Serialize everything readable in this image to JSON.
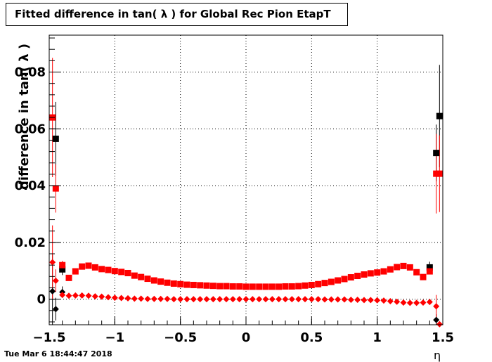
{
  "chart_data": {
    "type": "scatter",
    "title": "Fitted difference in tan( λ ) for Global Rec Pion EtapT",
    "xlabel": "η",
    "ylabel": "difference in tan( λ )",
    "xlim": [
      -1.5,
      1.5
    ],
    "ylim": [
      -0.009,
      0.093
    ],
    "grid": true,
    "xticks": [
      "−1.5",
      "−1",
      "−0.5",
      "0",
      "0.5",
      "1",
      "1.5"
    ],
    "xtick_values": [
      -1.5,
      -1,
      -0.5,
      0,
      0.5,
      1,
      1.5
    ],
    "yticks": [
      "0",
      "0.02",
      "0.04",
      "0.06",
      "0.08"
    ],
    "ytick_values": [
      0,
      0.02,
      0.04,
      0.06,
      0.08
    ],
    "series": [
      {
        "marker": "square",
        "color": "#000000",
        "points": [
          [
            -1.45,
            0.0565,
            0.013
          ],
          [
            -1.4,
            0.0105,
            0.002
          ],
          [
            1.4,
            0.0112,
            0.002
          ],
          [
            1.45,
            0.0515,
            0.01
          ],
          [
            1.475,
            0.0645,
            0.018
          ]
        ]
      },
      {
        "marker": "square",
        "color": "#ff0000",
        "points": [
          [
            -1.475,
            0.064,
            0.021
          ],
          [
            -1.45,
            0.039,
            0.0085
          ],
          [
            -1.4,
            0.012,
            0.0015
          ],
          [
            -1.35,
            0.0075,
            0
          ],
          [
            -1.3,
            0.0098,
            0
          ],
          [
            -1.25,
            0.0115,
            0
          ],
          [
            -1.2,
            0.0118,
            0
          ],
          [
            -1.15,
            0.0112,
            0
          ],
          [
            -1.1,
            0.0106,
            0
          ],
          [
            -1.05,
            0.0103,
            0
          ],
          [
            -1.0,
            0.0099,
            0
          ],
          [
            -0.95,
            0.0096,
            0
          ],
          [
            -0.9,
            0.0092,
            0
          ],
          [
            -0.85,
            0.0083,
            0
          ],
          [
            -0.8,
            0.0078,
            0
          ],
          [
            -0.75,
            0.0072,
            0
          ],
          [
            -0.7,
            0.0066,
            0
          ],
          [
            -0.65,
            0.0062,
            0
          ],
          [
            -0.6,
            0.0058,
            0
          ],
          [
            -0.55,
            0.0055,
            0
          ],
          [
            -0.5,
            0.0053,
            0
          ],
          [
            -0.45,
            0.0051,
            0
          ],
          [
            -0.4,
            0.005,
            0
          ],
          [
            -0.35,
            0.0049,
            0
          ],
          [
            -0.3,
            0.0048,
            0
          ],
          [
            -0.25,
            0.0047,
            0
          ],
          [
            -0.2,
            0.0046,
            0
          ],
          [
            -0.15,
            0.0046,
            0
          ],
          [
            -0.1,
            0.0045,
            0
          ],
          [
            -0.05,
            0.0045,
            0
          ],
          [
            0.0,
            0.0044,
            0
          ],
          [
            0.05,
            0.0044,
            0
          ],
          [
            0.1,
            0.0044,
            0
          ],
          [
            0.15,
            0.0044,
            0
          ],
          [
            0.2,
            0.0044,
            0
          ],
          [
            0.25,
            0.0044,
            0
          ],
          [
            0.3,
            0.0045,
            0
          ],
          [
            0.35,
            0.0045,
            0
          ],
          [
            0.4,
            0.0046,
            0
          ],
          [
            0.45,
            0.0048,
            0
          ],
          [
            0.5,
            0.005,
            0
          ],
          [
            0.55,
            0.0053,
            0
          ],
          [
            0.6,
            0.0057,
            0
          ],
          [
            0.65,
            0.0061,
            0
          ],
          [
            0.7,
            0.0066,
            0
          ],
          [
            0.75,
            0.0071,
            0
          ],
          [
            0.8,
            0.0077,
            0
          ],
          [
            0.85,
            0.0082,
            0
          ],
          [
            0.9,
            0.0087,
            0
          ],
          [
            0.95,
            0.0091,
            0
          ],
          [
            1.0,
            0.0094,
            0
          ],
          [
            1.05,
            0.0098,
            0
          ],
          [
            1.1,
            0.0105,
            0
          ],
          [
            1.15,
            0.0113,
            0
          ],
          [
            1.2,
            0.0117,
            0
          ],
          [
            1.25,
            0.0112,
            0
          ],
          [
            1.3,
            0.0095,
            0
          ],
          [
            1.35,
            0.0078,
            0
          ],
          [
            1.4,
            0.0098,
            0
          ],
          [
            1.45,
            0.0442,
            0.014
          ],
          [
            1.475,
            0.0442,
            0.0135
          ]
        ]
      },
      {
        "marker": "diamond",
        "color": "#000000",
        "points": [
          [
            -1.475,
            0.0028,
            0.013
          ],
          [
            -1.45,
            -0.0035,
            0.004
          ],
          [
            -1.4,
            0.0025,
            0.002
          ],
          [
            1.45,
            -0.0073,
            0.002
          ]
        ]
      },
      {
        "marker": "diamond",
        "color": "#ff0000",
        "points": [
          [
            -1.475,
            0.013,
            0.013
          ],
          [
            -1.45,
            0.0065,
            0.004
          ],
          [
            -1.4,
            0.0015,
            0.0008
          ],
          [
            -1.35,
            0.0012,
            0
          ],
          [
            -1.3,
            0.0013,
            0
          ],
          [
            -1.25,
            0.0013,
            0
          ],
          [
            -1.2,
            0.0012,
            0
          ],
          [
            -1.15,
            0.001,
            0
          ],
          [
            -1.1,
            0.0009,
            0
          ],
          [
            -1.05,
            0.0007,
            0
          ],
          [
            -1.0,
            0.0005,
            0
          ],
          [
            -0.95,
            0.0004,
            0
          ],
          [
            -0.9,
            0.0003,
            0
          ],
          [
            -0.85,
            0.0002,
            0
          ],
          [
            -0.8,
            0.0002,
            0
          ],
          [
            -0.75,
            0.0001,
            0
          ],
          [
            -0.7,
            0.0001,
            0
          ],
          [
            -0.65,
            0.0001,
            0
          ],
          [
            -0.6,
            0.0001,
            0
          ],
          [
            -0.55,
            0.0,
            0
          ],
          [
            -0.5,
            0.0,
            0
          ],
          [
            -0.45,
            0.0,
            0
          ],
          [
            -0.4,
            0.0,
            0
          ],
          [
            -0.35,
            0.0,
            0
          ],
          [
            -0.3,
            0.0,
            0
          ],
          [
            -0.25,
            0.0,
            0
          ],
          [
            -0.2,
            0.0,
            0
          ],
          [
            -0.15,
            0.0,
            0
          ],
          [
            -0.1,
            0.0,
            0
          ],
          [
            -0.05,
            0.0,
            0
          ],
          [
            0.0,
            0.0,
            0
          ],
          [
            0.05,
            0.0,
            0
          ],
          [
            0.1,
            0.0,
            0
          ],
          [
            0.15,
            0.0,
            0
          ],
          [
            0.2,
            0.0,
            0
          ],
          [
            0.25,
            0.0,
            0
          ],
          [
            0.3,
            0.0,
            0
          ],
          [
            0.35,
            0.0,
            0
          ],
          [
            0.4,
            0.0,
            0
          ],
          [
            0.45,
            0.0,
            0
          ],
          [
            0.5,
            0.0,
            0
          ],
          [
            0.55,
            0.0,
            0
          ],
          [
            0.6,
            -0.0001,
            0
          ],
          [
            0.65,
            -0.0001,
            0
          ],
          [
            0.7,
            -0.0001,
            0
          ],
          [
            0.75,
            -0.0001,
            0
          ],
          [
            0.8,
            -0.0002,
            0
          ],
          [
            0.85,
            -0.0002,
            0
          ],
          [
            0.9,
            -0.0003,
            0
          ],
          [
            0.95,
            -0.0003,
            0
          ],
          [
            1.0,
            -0.0004,
            0
          ],
          [
            1.05,
            -0.0005,
            0
          ],
          [
            1.1,
            -0.0007,
            0
          ],
          [
            1.15,
            -0.0009,
            0
          ],
          [
            1.2,
            -0.0012,
            0
          ],
          [
            1.25,
            -0.0013,
            0
          ],
          [
            1.3,
            -0.0013,
            0
          ],
          [
            1.35,
            -0.0012,
            0
          ],
          [
            1.4,
            -0.001,
            0
          ],
          [
            1.45,
            -0.0025,
            0.004
          ],
          [
            1.475,
            -0.0088,
            0.001
          ]
        ]
      }
    ]
  },
  "footer": {
    "timestamp": "Tue Mar  6 18:44:47 2018"
  }
}
